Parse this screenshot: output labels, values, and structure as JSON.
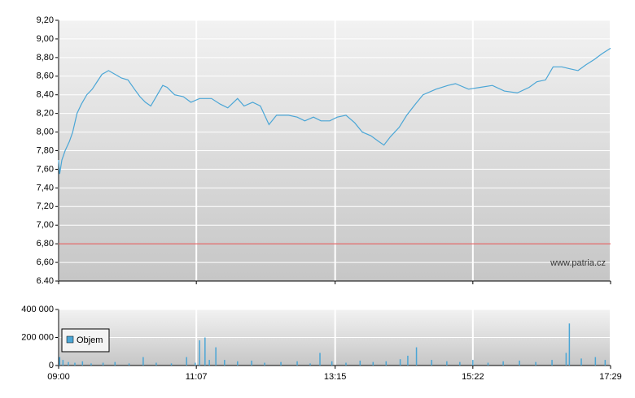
{
  "chart_data": [
    {
      "type": "line",
      "color": "#4ba6d6",
      "grid": true,
      "xlim": [
        "09:00",
        "17:29"
      ],
      "ylim": [
        6.4,
        9.2
      ],
      "yticks": [
        {
          "value": 9.2,
          "label": "9,20"
        },
        {
          "value": 9.0,
          "label": "9,00"
        },
        {
          "value": 8.8,
          "label": "8,80"
        },
        {
          "value": 8.6,
          "label": "8,60"
        },
        {
          "value": 8.4,
          "label": "8,40"
        },
        {
          "value": 8.2,
          "label": "8,20"
        },
        {
          "value": 8.0,
          "label": "8,00"
        },
        {
          "value": 7.8,
          "label": "7,80"
        },
        {
          "value": 7.6,
          "label": "7,60"
        },
        {
          "value": 7.4,
          "label": "7,40"
        },
        {
          "value": 7.2,
          "label": "7,20"
        },
        {
          "value": 7.0,
          "label": "7,00"
        },
        {
          "value": 6.8,
          "label": "6,80"
        },
        {
          "value": 6.6,
          "label": "6,60"
        },
        {
          "value": 6.4,
          "label": "6.40"
        }
      ],
      "reference_line": {
        "value": 6.8,
        "color": "#e04a4a"
      },
      "watermark": "www.patria.cz",
      "x": [
        "09:00",
        "09:01",
        "09:03",
        "09:06",
        "09:10",
        "09:13",
        "09:17",
        "09:21",
        "09:26",
        "09:31",
        "09:36",
        "09:40",
        "09:46",
        "09:52",
        "09:58",
        "10:04",
        "10:10",
        "10:15",
        "10:20",
        "10:25",
        "10:36",
        "10:40",
        "10:47",
        "10:55",
        "11:02",
        "11:10",
        "11:21",
        "11:29",
        "11:36",
        "11:45",
        "11:51",
        "11:59",
        "12:06",
        "12:14",
        "12:21",
        "12:32",
        "12:40",
        "12:47",
        "12:55",
        "13:02",
        "13:10",
        "13:17",
        "13:25",
        "13:33",
        "13:40",
        "13:48",
        "13:55",
        "14:00",
        "14:06",
        "14:14",
        "14:21",
        "14:29",
        "14:36",
        "14:48",
        "14:59",
        "15:06",
        "15:18",
        "15:29",
        "15:40",
        "15:51",
        "16:03",
        "16:14",
        "16:21",
        "16:29",
        "16:36",
        "16:44",
        "16:51",
        "16:59",
        "17:06",
        "17:14",
        "17:21",
        "17:29"
      ],
      "values": [
        7.7,
        7.55,
        7.7,
        7.8,
        7.9,
        8.0,
        8.2,
        8.3,
        8.4,
        8.46,
        8.55,
        8.62,
        8.66,
        8.62,
        8.58,
        8.56,
        8.46,
        8.38,
        8.32,
        8.28,
        8.5,
        8.48,
        8.4,
        8.38,
        8.32,
        8.36,
        8.36,
        8.3,
        8.26,
        8.36,
        8.28,
        8.32,
        8.28,
        8.08,
        8.18,
        8.18,
        8.16,
        8.12,
        8.16,
        8.12,
        8.12,
        8.16,
        8.18,
        8.1,
        8.0,
        7.96,
        7.9,
        7.86,
        7.95,
        8.05,
        8.18,
        8.3,
        8.4,
        8.46,
        8.5,
        8.52,
        8.46,
        8.48,
        8.5,
        8.44,
        8.42,
        8.48,
        8.54,
        8.56,
        8.7,
        8.7,
        8.68,
        8.66,
        8.72,
        8.78,
        8.84,
        8.9
      ]
    },
    {
      "type": "bar",
      "grid": true,
      "xlim": [
        "09:00",
        "17:29"
      ],
      "xticks": [
        "09:00",
        "11:07",
        "13:15",
        "15:22",
        "17:29"
      ],
      "ylim": [
        0,
        400000
      ],
      "yticks": [
        0,
        {
          "value": 200000,
          "label": "200 000"
        },
        {
          "value": 400000,
          "label": "400 000"
        }
      ],
      "series": [
        {
          "name": "Objem",
          "color": "#4ba6d6",
          "x": [
            "09:01",
            "09:04",
            "09:09",
            "09:15",
            "09:22",
            "09:30",
            "09:41",
            "09:52",
            "10:05",
            "10:18",
            "10:30",
            "10:44",
            "10:58",
            "11:06",
            "11:10",
            "11:15",
            "11:19",
            "11:25",
            "11:33",
            "11:45",
            "11:58",
            "12:10",
            "12:25",
            "12:40",
            "12:52",
            "13:01",
            "13:12",
            "13:25",
            "13:38",
            "13:50",
            "14:02",
            "14:15",
            "14:22",
            "14:30",
            "14:44",
            "14:58",
            "15:10",
            "15:22",
            "15:36",
            "15:50",
            "16:05",
            "16:20",
            "16:35",
            "16:48",
            "16:51",
            "17:02",
            "17:15",
            "17:24"
          ],
          "values": [
            60000,
            40000,
            25000,
            20000,
            30000,
            15000,
            20000,
            25000,
            15000,
            60000,
            20000,
            15000,
            60000,
            20000,
            180000,
            200000,
            40000,
            130000,
            40000,
            30000,
            35000,
            20000,
            25000,
            30000,
            15000,
            90000,
            30000,
            20000,
            35000,
            25000,
            30000,
            45000,
            70000,
            130000,
            40000,
            30000,
            25000,
            40000,
            20000,
            30000,
            35000,
            25000,
            40000,
            90000,
            300000,
            50000,
            60000,
            40000
          ]
        }
      ]
    }
  ]
}
